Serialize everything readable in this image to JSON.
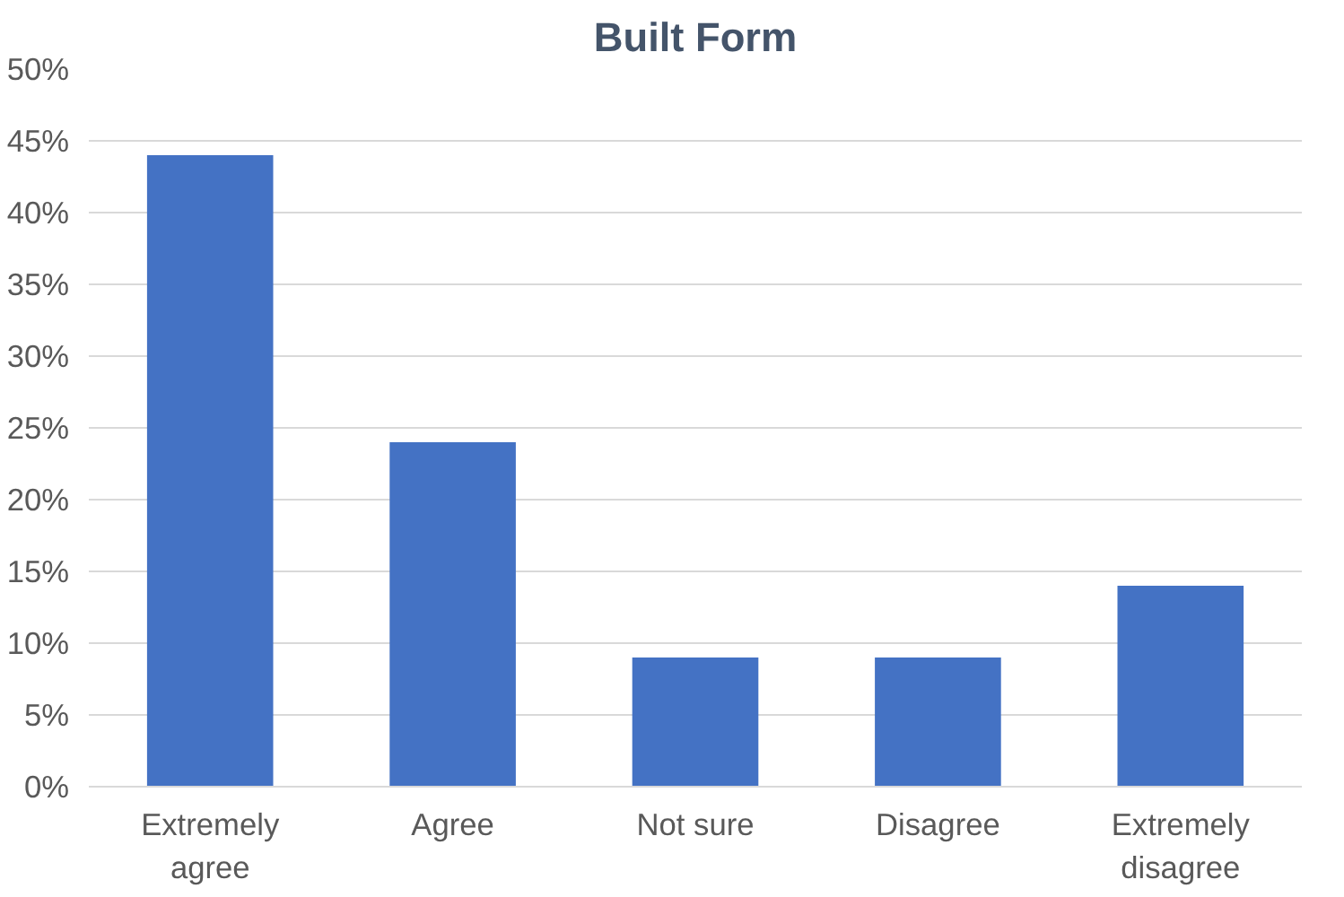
{
  "chart_data": {
    "type": "bar",
    "title": "Built Form",
    "categories": [
      "Extremely agree",
      "Agree",
      "Not sure",
      "Disagree",
      "Extremely disagree"
    ],
    "values": [
      44,
      24,
      9,
      9,
      14
    ],
    "color": "#4472c4",
    "ylim": [
      0,
      50
    ],
    "yticks": [
      {
        "value": 0,
        "label": "0%"
      },
      {
        "value": 5,
        "label": "5%"
      },
      {
        "value": 10,
        "label": "10%"
      },
      {
        "value": 15,
        "label": "15%"
      },
      {
        "value": 20,
        "label": "20%"
      },
      {
        "value": 25,
        "label": "25%"
      },
      {
        "value": 30,
        "label": "30%"
      },
      {
        "value": 35,
        "label": "35%"
      },
      {
        "value": 40,
        "label": "40%"
      },
      {
        "value": 45,
        "label": "45%"
      },
      {
        "value": 50,
        "label": "50%"
      }
    ],
    "grid": "y"
  }
}
